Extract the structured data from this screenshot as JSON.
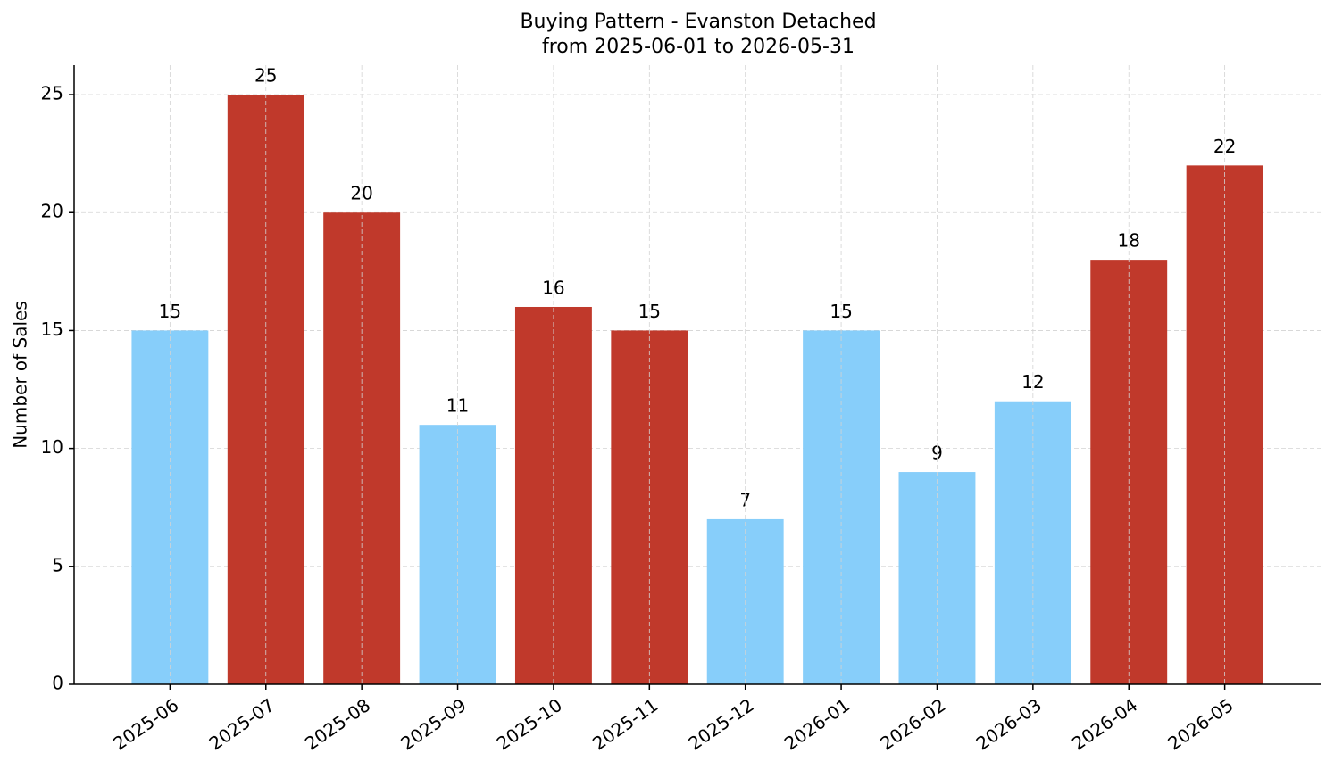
{
  "chart_data": {
    "type": "bar",
    "title": "Buying Pattern - Evanston Detached",
    "subtitle": "from 2025-06-01 to 2026-05-31",
    "y_label": "Number of Sales",
    "categories": [
      "2025-06",
      "2025-07",
      "2025-08",
      "2025-09",
      "2025-10",
      "2025-11",
      "2025-12",
      "2026-01",
      "2026-02",
      "2026-03",
      "2026-04",
      "2026-05"
    ],
    "values": [
      15,
      25,
      20,
      11,
      16,
      15,
      7,
      15,
      9,
      12,
      18,
      22
    ],
    "colors": [
      "#87cefa",
      "#c0392b",
      "#c0392b",
      "#87cefa",
      "#c0392b",
      "#c0392b",
      "#87cefa",
      "#87cefa",
      "#87cefa",
      "#87cefa",
      "#c0392b",
      "#c0392b"
    ],
    "ylim": [
      0,
      26.25
    ],
    "yticks": [
      0,
      5,
      10,
      15,
      20,
      25
    ],
    "grid": true
  }
}
